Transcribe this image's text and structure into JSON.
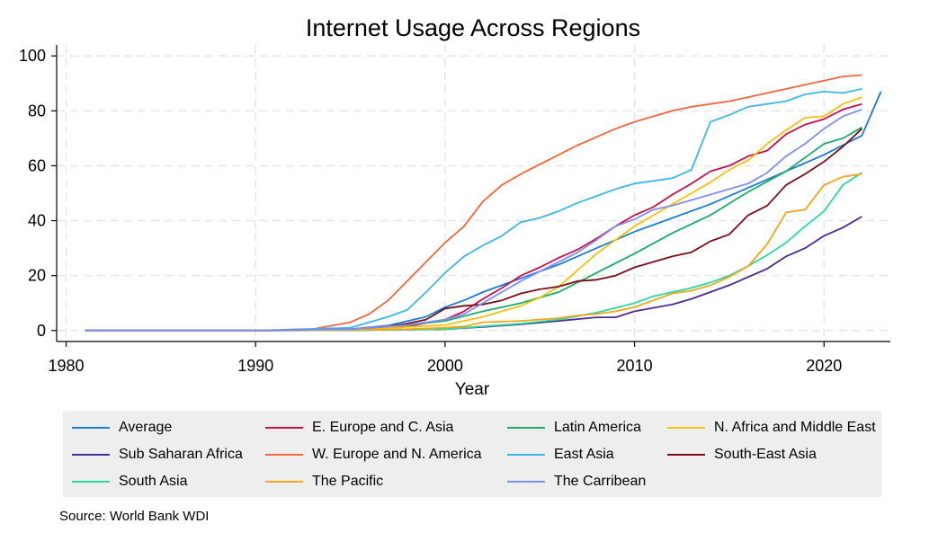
{
  "chart_data": {
    "type": "line",
    "title": "Internet Usage Across Regions",
    "xlabel": "Year",
    "ylabel": "",
    "xlim": [
      1979.5,
      2023.5
    ],
    "ylim": [
      -4,
      104
    ],
    "x_ticks": [
      1980,
      1990,
      2000,
      2010,
      2020
    ],
    "y_ticks": [
      0,
      20,
      40,
      60,
      80,
      100
    ],
    "grid": true,
    "legend_position": "bottom",
    "source": "Source:  World Bank WDI",
    "series": [
      {
        "name": "Average",
        "color": "#1a7bd6",
        "x": [
          1981,
          1990,
          1995,
          1997,
          1999,
          2000,
          2001,
          2002,
          2003,
          2004,
          2006,
          2008,
          2010,
          2012,
          2014,
          2016,
          2018,
          2020,
          2022,
          2023
        ],
        "y": [
          0,
          0,
          0.5,
          1.8,
          5,
          8.5,
          11,
          14,
          16.5,
          19,
          24,
          30,
          36,
          41,
          46,
          52,
          58,
          64,
          71,
          87
        ]
      },
      {
        "name": "E. Europe and C. Asia",
        "color": "#c8104f",
        "x": [
          1981,
          1990,
          1995,
          1998,
          2000,
          2001,
          2002,
          2003,
          2004,
          2005,
          2006,
          2007,
          2008,
          2009,
          2010,
          2011,
          2012,
          2013,
          2014,
          2015,
          2016,
          2017,
          2018,
          2019,
          2020,
          2021,
          2022
        ],
        "y": [
          0,
          0,
          0.3,
          1.5,
          4,
          7,
          11.5,
          15.5,
          20,
          23,
          26.5,
          29.5,
          33.5,
          38,
          42,
          45,
          49.5,
          53.5,
          58,
          60,
          63.5,
          65.5,
          71.5,
          75,
          77,
          80.5,
          82.5
        ]
      },
      {
        "name": "Latin America",
        "color": "#1bab6c",
        "x": [
          1981,
          1990,
          1995,
          1998,
          2000,
          2002,
          2004,
          2006,
          2008,
          2010,
          2012,
          2014,
          2016,
          2018,
          2019,
          2020,
          2021,
          2022
        ],
        "y": [
          0,
          0,
          0.3,
          2,
          3.5,
          7,
          10,
          14,
          21,
          28,
          35.5,
          42,
          50.5,
          58,
          63,
          68,
          70,
          74
        ]
      },
      {
        "name": "N. Africa and Middle East",
        "color": "#f4c20d",
        "x": [
          1981,
          1990,
          1995,
          2000,
          2002,
          2004,
          2005,
          2006,
          2007,
          2008,
          2009,
          2010,
          2011,
          2012,
          2013,
          2014,
          2015,
          2016,
          2017,
          2018,
          2019,
          2020,
          2021,
          2022
        ],
        "y": [
          0,
          0,
          0.2,
          2,
          5,
          9,
          12,
          16,
          22,
          28,
          33,
          38,
          42,
          46,
          50,
          54,
          58.5,
          62,
          68,
          73,
          77.5,
          78,
          82.5,
          85
        ]
      },
      {
        "name": "Sub Saharan Africa",
        "color": "#4b2a91",
        "x": [
          1981,
          1990,
          1995,
          2000,
          2002,
          2004,
          2006,
          2008,
          2009,
          2010,
          2012,
          2013,
          2014,
          2015,
          2016,
          2017,
          2018,
          2019,
          2020,
          2021,
          2022
        ],
        "y": [
          0,
          0,
          0.1,
          0.5,
          1.3,
          2.3,
          3.5,
          4.8,
          4.8,
          7,
          9.5,
          11.5,
          14,
          16.5,
          19.5,
          22.5,
          27,
          30,
          34.5,
          37.5,
          41.5
        ]
      },
      {
        "name": "W. Europe and N. America",
        "color": "#f2663d",
        "x": [
          1981,
          1990,
          1993,
          1995,
          1996,
          1997,
          1998,
          1999,
          2000,
          2001,
          2002,
          2003,
          2004,
          2005,
          2006,
          2007,
          2008,
          2009,
          2010,
          2011,
          2012,
          2013,
          2014,
          2015,
          2016,
          2017,
          2018,
          2019,
          2020,
          2021,
          2022
        ],
        "y": [
          0,
          0,
          0.5,
          3,
          6,
          11,
          18,
          25,
          32,
          38,
          47,
          53,
          57,
          60.5,
          64,
          67.5,
          70.5,
          73.5,
          76,
          78,
          80,
          81.5,
          82.5,
          83.5,
          85,
          86.5,
          88,
          89.5,
          91,
          92.5,
          93
        ]
      },
      {
        "name": "East Asia",
        "color": "#40b5ec",
        "x": [
          1981,
          1990,
          1995,
          1996,
          1997,
          1998,
          1999,
          2000,
          2001,
          2002,
          2003,
          2004,
          2005,
          2006,
          2007,
          2008,
          2009,
          2010,
          2011,
          2012,
          2013,
          2014,
          2015,
          2016,
          2017,
          2018,
          2019,
          2020,
          2021,
          2022
        ],
        "y": [
          0,
          0,
          1,
          3,
          5,
          7.5,
          14,
          21,
          27,
          31,
          34.5,
          39.5,
          41,
          43.5,
          46.5,
          49,
          51.5,
          53.5,
          54.5,
          55.5,
          58.5,
          76,
          78.5,
          81.5,
          82.5,
          83.5,
          86,
          87,
          86.5,
          88
        ]
      },
      {
        "name": "South-East Asia",
        "color": "#7b0d16",
        "x": [
          1981,
          1990,
          1995,
          1997,
          1998,
          1999,
          2000,
          2001,
          2002,
          2003,
          2004,
          2005,
          2006,
          2007,
          2008,
          2009,
          2010,
          2011,
          2012,
          2013,
          2014,
          2015,
          2016,
          2017,
          2018,
          2019,
          2020,
          2021,
          2022
        ],
        "y": [
          0,
          0,
          0.5,
          1.5,
          2.5,
          4,
          8,
          9,
          9.5,
          11,
          13.5,
          15,
          16,
          18,
          18.5,
          20,
          23,
          25,
          27,
          28.5,
          32.5,
          35,
          42,
          45.5,
          53,
          57,
          61.5,
          67,
          73.5
        ]
      },
      {
        "name": "South Asia",
        "color": "#29d9a1",
        "x": [
          1981,
          1990,
          1995,
          2000,
          2002,
          2004,
          2006,
          2008,
          2010,
          2011,
          2012,
          2013,
          2014,
          2015,
          2016,
          2017,
          2018,
          2019,
          2020,
          2021,
          2022
        ],
        "y": [
          0,
          0,
          0.1,
          0.5,
          1.5,
          2.5,
          4,
          6.5,
          10,
          12.5,
          14,
          15.5,
          17.5,
          20,
          23.5,
          27.5,
          32,
          38,
          43.5,
          53,
          57.5
        ]
      },
      {
        "name": "The Pacific",
        "color": "#f3a51b",
        "x": [
          1981,
          1990,
          1995,
          1998,
          2000,
          2001,
          2002,
          2004,
          2006,
          2007,
          2008,
          2009,
          2010,
          2011,
          2012,
          2013,
          2014,
          2015,
          2016,
          2017,
          2018,
          2019,
          2020,
          2021,
          2022
        ],
        "y": [
          0,
          0,
          0.2,
          0.5,
          1,
          1.5,
          3,
          3.5,
          4.5,
          5.5,
          6,
          7,
          8.5,
          11,
          13.5,
          14.5,
          16.5,
          19.5,
          23.5,
          31.5,
          43,
          44,
          53,
          56,
          57
        ]
      },
      {
        "name": "The Carribean",
        "color": "#7f8ff0",
        "x": [
          1981,
          1990,
          1995,
          1998,
          2000,
          2001,
          2002,
          2003,
          2004,
          2005,
          2006,
          2007,
          2008,
          2009,
          2010,
          2011,
          2012,
          2013,
          2014,
          2015,
          2016,
          2017,
          2018,
          2019,
          2020,
          2021,
          2022
        ],
        "y": [
          0,
          0,
          0.5,
          2,
          4,
          6,
          10,
          14,
          18,
          21.5,
          25,
          28.5,
          33,
          38,
          40.5,
          44,
          45.5,
          47.5,
          49.5,
          51.5,
          53.5,
          57.5,
          63.5,
          68,
          73.5,
          78,
          80.5
        ]
      }
    ]
  }
}
